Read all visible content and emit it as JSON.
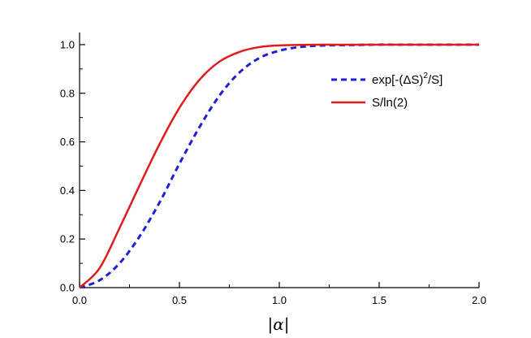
{
  "chart_data": {
    "type": "line",
    "title": "",
    "xlabel": "|α|",
    "ylabel": "",
    "xlim": [
      0.0,
      2.0
    ],
    "ylim": [
      0.0,
      1.05
    ],
    "x_ticks": [
      "0.0",
      "0.5",
      "1.0",
      "1.5",
      "2.0"
    ],
    "y_ticks": [
      "0.0",
      "0.2",
      "0.4",
      "0.6",
      "0.8",
      "1.0"
    ],
    "grid": false,
    "legend_position": "top-right",
    "x": [
      0.0,
      0.1,
      0.2,
      0.3,
      0.4,
      0.5,
      0.6,
      0.7,
      0.8,
      0.9,
      1.0,
      1.1,
      1.2,
      1.3,
      1.4,
      1.5,
      1.6,
      1.8,
      2.0
    ],
    "series": [
      {
        "name": "exp[-(ΔS)²/S]",
        "legend_main": "exp[-(",
        "legend_delta": "Δ",
        "legend_mid": "S)",
        "legend_sup": "2",
        "legend_tail": "/S]",
        "color": "#1f1fd6",
        "style": "dashed",
        "values": [
          0.0,
          0.03,
          0.1,
          0.21,
          0.35,
          0.51,
          0.66,
          0.79,
          0.885,
          0.945,
          0.975,
          0.99,
          0.996,
          0.998,
          0.999,
          1.0,
          1.0,
          1.0,
          1.0
        ]
      },
      {
        "name": "S/ln(2)",
        "legend_main": "S/ln(2)",
        "color": "#e01b1b",
        "style": "solid",
        "values": [
          0.0,
          0.08,
          0.245,
          0.42,
          0.59,
          0.74,
          0.855,
          0.93,
          0.97,
          0.99,
          0.997,
          0.999,
          1.0,
          1.0,
          1.0,
          1.0,
          1.0,
          1.0,
          1.0
        ]
      }
    ]
  }
}
